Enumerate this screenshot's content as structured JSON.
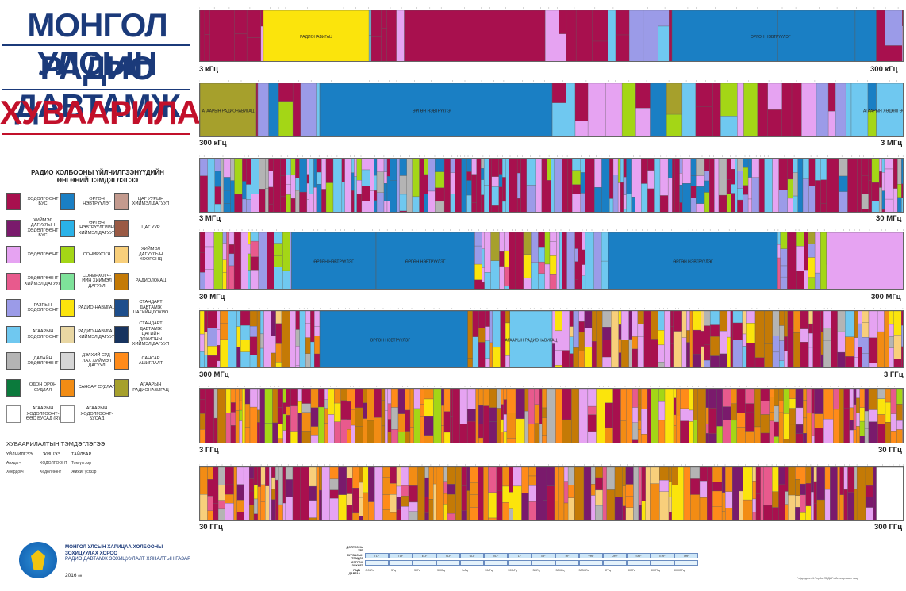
{
  "title": {
    "line1": "МОНГОЛ УЛСЫН",
    "line2": "РАДИО ДАВТАМЖ",
    "line3": "ХУВААРИЛАЛТ"
  },
  "legend": {
    "title": "РАДИО ХОЛБООНЫ ҮЙЛЧИЛГЭЭНҮҮДИЙН ӨНГӨНИЙ ТЭМДЭГЛЭГЭЭ",
    "items": [
      {
        "label": "ХӨДӨЛГӨӨНТ БУС",
        "color": "#a8104e"
      },
      {
        "label": "ХИЙМЭЛ ДАГУУЛЫН ХӨДӨЛГӨӨНТ БУС",
        "color": "#7a1a6c"
      },
      {
        "label": "ХӨДӨЛГӨӨНТ",
        "color": "#e6a3f2"
      },
      {
        "label": "ХӨДӨЛГӨӨНТ ХИЙМЭЛ ДАГУУЛ",
        "color": "#e85a8d"
      },
      {
        "label": "ГАЗРЫН ХӨДӨЛГӨӨНТ",
        "color": "#9b9be8"
      },
      {
        "label": "АГААРЫН ХӨДӨЛГӨӨНТ",
        "color": "#6fc8f0"
      },
      {
        "label": "ДАЛАЙН ХӨДӨЛГӨӨНТ",
        "color": "#b4b4b4"
      },
      {
        "label": "ОДОН ОРОН СУДЛАЛ",
        "color": "#0b7a3c"
      },
      {
        "label": "ӨРГӨН НЭВТРҮҮЛЭГ",
        "color": "#1a7fc4"
      },
      {
        "label": "ӨРГӨН НЭВТРҮҮЛГИЙН ХИЙМЭЛ ДАГУУЛ",
        "color": "#2ab2e8"
      },
      {
        "label": "СОНИРХОГЧ",
        "color": "#a4d616"
      },
      {
        "label": "СОНИРХОГЧ-ИЙН ХИЙМЭЛ ДАГУУЛ",
        "color": "#7ee29a"
      },
      {
        "label": "РАДИО-НАВИГАЦ",
        "color": "#fbe40c"
      },
      {
        "label": "РАДИО-НАВИГАЦ ХИЙМЭЛ ДАГУУЛ",
        "color": "#e9d7a3"
      },
      {
        "label": "ДЭЛХИЙ СУД-ЛАХ ХИЙМЭЛ ДАГУУЛ",
        "color": "#d6d6d6"
      },
      {
        "label": "САНСАР СУДЛАЛ",
        "color": "#f28c14"
      },
      {
        "label": "ЦАГ УУРЫН ХИЙМЭЛ ДАГУУЛ",
        "color": "#c39a8e"
      },
      {
        "label": "ЦАГ УУР",
        "color": "#9a5a44"
      },
      {
        "label": "ХИЙМЭЛ ДАГУУЛЫН ХООРОНД",
        "color": "#f8cf7b"
      },
      {
        "label": "РАДИОЛОКАЦ",
        "color": "#c47a06"
      },
      {
        "label": "СТАНДАРТ ДАВТАМЖ ЦАГИЙН ДОХИО",
        "color": "#1e4e8c"
      },
      {
        "label": "СТАНДАРТ ДАВТАМЖ ЦАГИЙН ДОХИОНЫ ХИЙМЭЛ ДАГУУЛ",
        "color": "#17335f"
      },
      {
        "label": "САНСАР АШИГЛАЛТ",
        "color": "#ff8b1a"
      },
      {
        "label": "АГААРЫН РАДИОНАВИГАЦ",
        "color": "#a6a02c"
      },
      {
        "label": "АГААРЫН ХӨДӨЛГӨӨНТ-ӨӨС БУСАД (R)",
        "color": "#ffffff"
      },
      {
        "label": "АГААРЫН ХӨДӨЛГӨӨНТ-БУСАД",
        "color": "#ffffff"
      }
    ]
  },
  "symbols": {
    "title": "ХУВААРИЛАЛТЫН ТЭМДЭГЛЭГЭЭ",
    "headers": [
      "ҮЙЛЧИЛГЭЭ",
      "ЖИШЭЭ",
      "ТАЙЛБАР"
    ],
    "rows": [
      [
        "Анхдагч",
        "ХӨДӨЛГӨӨНТ",
        "Том үсгээр"
      ],
      [
        "Хоёрдогч",
        "Хөдөлгөөнт",
        "Жижиг үсгээр"
      ]
    ]
  },
  "bands": [
    {
      "start": "3 кГц",
      "end": "300 кГц"
    },
    {
      "start": "300 кГц",
      "end": "3 МГц"
    },
    {
      "start": "3 МГц",
      "end": "30 МГц"
    },
    {
      "start": "30 МГц",
      "end": "300 МГц"
    },
    {
      "start": "300 МГц",
      "end": "3 ГГц"
    },
    {
      "start": "3 ГГц",
      "end": "30 ГГц"
    },
    {
      "start": "30 ГГц",
      "end": "300 ГГц"
    }
  ],
  "band1_labels": [
    "РАДИОНАВИГАЦ",
    "ӨРГӨН НЭВТРҮҮЛЭГ"
  ],
  "band2_labels": [
    "АГААРЫН РАДИОНАВИГАЦ",
    "ӨРГӨН НЭВТРҮҮЛЭГ",
    "АГААРЫН ХӨДӨЛГӨӨНТ (R)"
  ],
  "band4_labels": [
    "ӨРГӨН НЭВТРҮҮЛЭГ",
    "ӨРГӨН НЭВТРҮҮЛЭГ",
    "ӨРГӨН НЭВТРҮҮЛЭГ"
  ],
  "band5_labels": [
    "ӨРГӨН НЭВТРҮҮЛЭГ",
    "АГААРЫН РАДИОНАВИГАЦ"
  ],
  "organization": {
    "name": "МОНГОЛ УЛСЫН ХАРИЦАА ХОЛБООНЫ ЗОХИЦУУЛАХ ХОРОО",
    "unit": "РАДИО ДАВТАМЖ ЗОХИЦУУЛАЛТ ХЯНАЛТЫН ГАЗАР",
    "year": "2016",
    "year_suffix": "он"
  },
  "band_table": {
    "row_labels": [
      "ДОЛГИОНЫ УРТ",
      "ЗУРВАСЫН ТЭМДЭГ",
      "МЭРГЭЖ ЗОХЬЕТ",
      "РАДИО ДАВТАМЖ"
    ],
    "designations": [
      "TLF",
      "TLF",
      "ELF",
      "SLF",
      "ULF",
      "VLF",
      "LF",
      "MF",
      "HF",
      "VHF",
      "UHF",
      "SHF",
      "EHF",
      "THF"
    ],
    "frequencies": [
      "0.03Гц",
      "3Гц",
      "30Гц",
      "300Гц",
      "3кГц",
      "30кГц",
      "300кГц",
      "3МГц",
      "30МГц",
      "300МГц",
      "3ГГц",
      "30ГГц",
      "300ГГц",
      "3000ГГц"
    ]
  },
  "credit": "Гэйдэгдсэн Ч.ТорБөгЛЕДАГ-ийн марлаалттаар"
}
